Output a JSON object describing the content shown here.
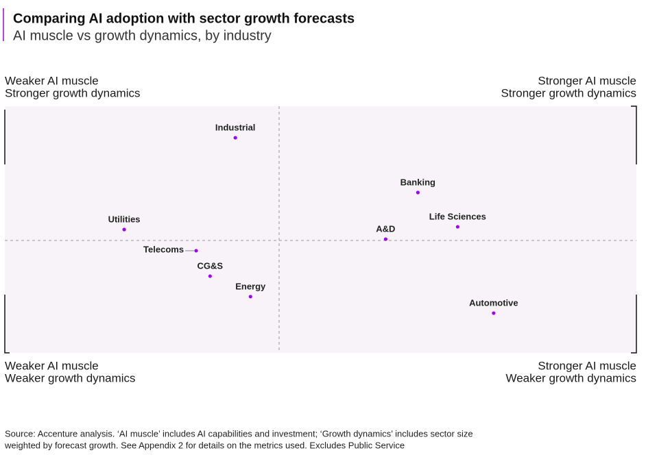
{
  "chart_data": {
    "type": "scatter",
    "title": "Comparing AI adoption with sector growth forecasts",
    "subtitle": "AI muscle vs growth dynamics, by industry",
    "quadrant_labels": {
      "top_left": [
        "Weaker AI muscle",
        "Stronger growth dynamics"
      ],
      "top_right": [
        "Stronger AI muscle",
        "Stronger growth dynamics"
      ],
      "bottom_left": [
        "Weaker AI muscle",
        "Weaker growth dynamics"
      ],
      "bottom_right": [
        "Stronger AI muscle",
        "Weaker growth dynamics"
      ]
    },
    "categories": [
      "Industrial",
      "Banking",
      "Life Sciences",
      "A&D",
      "Utilities",
      "Telecoms",
      "CG&S",
      "Energy",
      "Automotive"
    ],
    "x": [
      36.5,
      65.4,
      71.7,
      60.3,
      18.9,
      30.3,
      32.5,
      38.9,
      77.4
    ],
    "y": [
      87.2,
      65.0,
      51.1,
      46.1,
      50.0,
      41.4,
      31.1,
      22.8,
      16.1
    ],
    "color": "#a100ff",
    "xlim": [
      0,
      100
    ],
    "ylim": [
      0,
      100
    ],
    "source": [
      "Source: Accenture analysis. ‘AI muscle’ includes AI capabilities and investment; ‘Growth dynamics’ includes sector size",
      "weighted by forecast growth. See Appendix 2 for details on the metrics used. Excludes Public Service"
    ]
  }
}
